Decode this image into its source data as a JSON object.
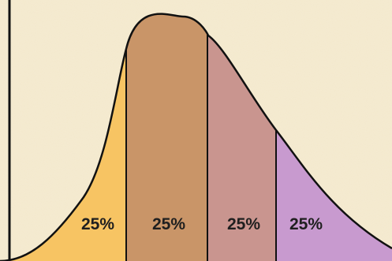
{
  "diagram": {
    "segments": [
      {
        "label": "25%",
        "color": "#f7c463"
      },
      {
        "label": "25%",
        "color": "#c99568"
      },
      {
        "label": "25%",
        "color": "#c9958f"
      },
      {
        "label": "25%",
        "color": "#c89acf"
      }
    ],
    "colors": {
      "background": "#f6ecd2",
      "outline": "#111111"
    }
  }
}
